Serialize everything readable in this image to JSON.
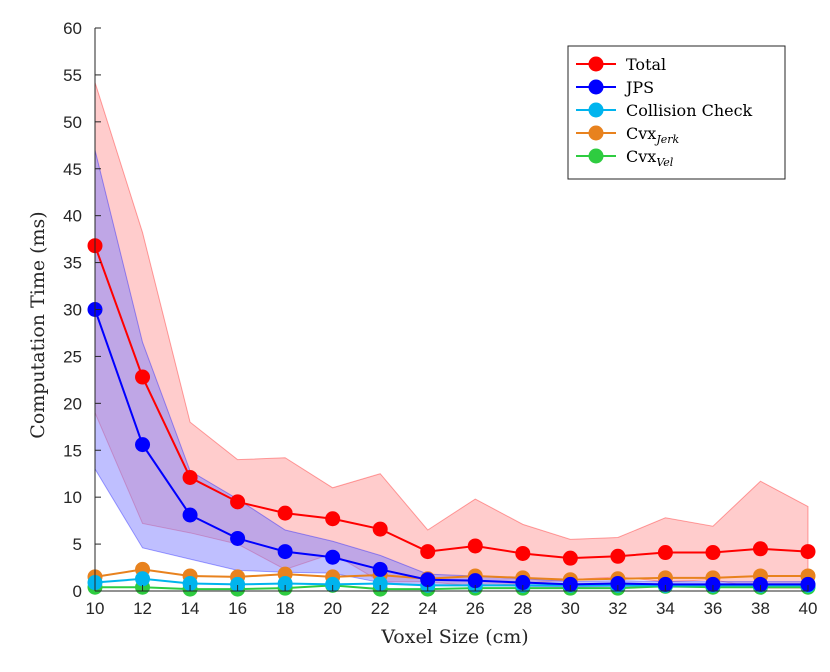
{
  "chart_data": {
    "type": "line",
    "title": "",
    "xlabel": "Voxel Size (cm)",
    "ylabel": "Computation Time (ms)",
    "xlim": [
      10,
      40
    ],
    "ylim": [
      0,
      60
    ],
    "x": [
      10,
      12,
      14,
      16,
      18,
      20,
      22,
      24,
      26,
      28,
      30,
      32,
      34,
      36,
      38,
      40
    ],
    "xticks": [
      "10",
      "12",
      "14",
      "16",
      "18",
      "20",
      "22",
      "24",
      "26",
      "28",
      "30",
      "32",
      "34",
      "36",
      "38",
      "40"
    ],
    "yticks": [
      "0",
      "5",
      "10",
      "15",
      "20",
      "25",
      "30",
      "35",
      "40",
      "45",
      "50",
      "55",
      "60"
    ],
    "grid": false,
    "legend_position": "top-right",
    "series": [
      {
        "name": "Total",
        "legend_main": "Total",
        "legend_sub": "",
        "color": "#ff0000",
        "values": [
          36.8,
          22.8,
          12.1,
          9.5,
          8.3,
          7.7,
          6.6,
          4.2,
          4.8,
          4.0,
          3.5,
          3.7,
          4.1,
          4.1,
          4.5,
          4.2
        ],
        "band_upper": [
          54.2,
          38.2,
          18.0,
          14.0,
          14.2,
          11.0,
          12.5,
          6.5,
          9.8,
          7.1,
          5.5,
          5.7,
          7.8,
          6.9,
          11.7,
          9.0
        ],
        "band_lower": [
          19.0,
          7.2,
          6.2,
          5.0,
          2.3,
          4.0,
          1.0,
          1.0,
          0.5,
          0.8,
          1.2,
          1.5,
          1.0,
          1.2,
          0.3,
          0.3
        ],
        "band_color": "#ff9a9a"
      },
      {
        "name": "JPS",
        "legend_main": "JPS",
        "legend_sub": "",
        "color": "#0000ff",
        "values": [
          30.0,
          15.6,
          8.1,
          5.6,
          4.2,
          3.6,
          2.3,
          1.2,
          1.1,
          0.9,
          0.7,
          0.8,
          0.7,
          0.7,
          0.7,
          0.7
        ],
        "band_upper": [
          47.0,
          26.5,
          12.8,
          9.8,
          6.5,
          5.3,
          3.8,
          1.8,
          1.6,
          1.3,
          1.0,
          1.1,
          1.0,
          1.0,
          1.0,
          1.0
        ],
        "band_lower": [
          13.0,
          4.6,
          3.4,
          2.2,
          2.0,
          1.9,
          0.9,
          0.6,
          0.6,
          0.5,
          0.4,
          0.5,
          0.4,
          0.4,
          0.4,
          0.4
        ],
        "band_color": "#7f7fff"
      },
      {
        "name": "Collision Check",
        "legend_main": "Collision Check",
        "legend_sub": "",
        "color": "#00b4ee",
        "values": [
          0.9,
          1.3,
          0.8,
          0.7,
          0.8,
          0.7,
          0.8,
          0.6,
          0.6,
          0.6,
          0.6,
          0.6,
          0.6,
          0.6,
          0.6,
          0.6
        ]
      },
      {
        "name": "Cvx_Jerk",
        "legend_main": "Cvx",
        "legend_sub": "Jerk",
        "color": "#e8821e",
        "values": [
          1.5,
          2.3,
          1.6,
          1.5,
          1.8,
          1.5,
          1.7,
          1.3,
          1.6,
          1.4,
          1.2,
          1.3,
          1.4,
          1.4,
          1.6,
          1.6
        ]
      },
      {
        "name": "Cvx_Vel",
        "legend_main": "Cvx",
        "legend_sub": "Vel",
        "color": "#2ecc40",
        "values": [
          0.4,
          0.4,
          0.2,
          0.2,
          0.3,
          0.6,
          0.2,
          0.2,
          0.3,
          0.3,
          0.3,
          0.3,
          0.5,
          0.4,
          0.4,
          0.4
        ]
      }
    ]
  }
}
